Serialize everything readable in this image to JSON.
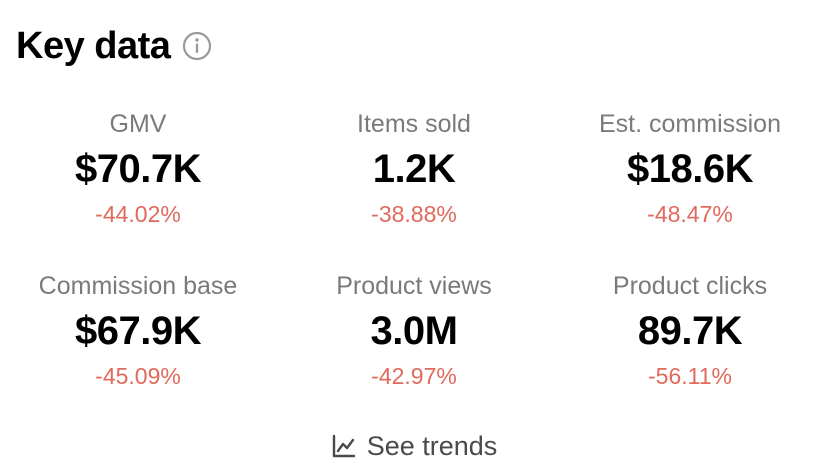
{
  "header": {
    "title": "Key data",
    "info_icon": "info-icon"
  },
  "metrics": [
    {
      "label": "GMV",
      "value": "$70.7K",
      "change": "-44.02%"
    },
    {
      "label": "Items sold",
      "value": "1.2K",
      "change": "-38.88%"
    },
    {
      "label": "Est. commission",
      "value": "$18.6K",
      "change": "-48.47%"
    },
    {
      "label": "Commission base",
      "value": "$67.9K",
      "change": "-45.09%"
    },
    {
      "label": "Product views",
      "value": "3.0M",
      "change": "-42.97%"
    },
    {
      "label": "Product clicks",
      "value": "89.7K",
      "change": "-56.11%"
    }
  ],
  "footer": {
    "see_trends_label": "See trends",
    "trend_icon": "line-chart-icon"
  },
  "colors": {
    "title": "#000000",
    "label": "#7a7a7a",
    "value": "#000000",
    "negative_change": "#e06a5c",
    "link": "#4a4a4a"
  }
}
